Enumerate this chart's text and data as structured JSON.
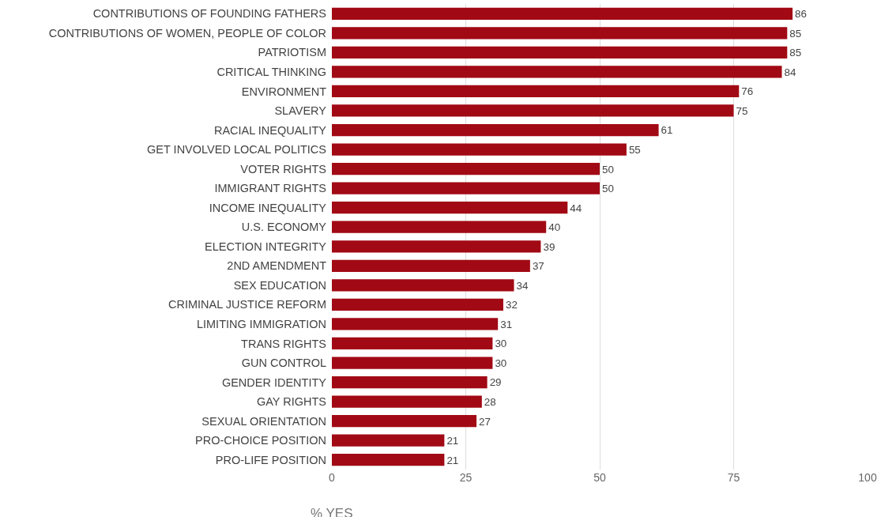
{
  "chart_data": {
    "type": "bar",
    "orientation": "horizontal",
    "xlabel": "% YES",
    "categories": [
      "CONTRIBUTIONS OF FOUNDING FATHERS",
      "CONTRIBUTIONS OF WOMEN, PEOPLE OF COLOR",
      "PATRIOTISM",
      "CRITICAL THINKING",
      "ENVIRONMENT",
      "SLAVERY",
      "RACIAL INEQUALITY",
      "GET INVOLVED LOCAL POLITICS",
      "VOTER RIGHTS",
      "IMMIGRANT RIGHTS",
      "INCOME INEQUALITY",
      "U.S. ECONOMY",
      "ELECTION INTEGRITY",
      "2ND AMENDMENT",
      "SEX EDUCATION",
      "CRIMINAL JUSTICE REFORM",
      "LIMITING IMMIGRATION",
      "TRANS RIGHTS",
      "GUN CONTROL",
      "GENDER IDENTITY",
      "GAY RIGHTS",
      "SEXUAL ORIENTATION",
      "PRO-CHOICE POSITION",
      "PRO-LIFE POSITION"
    ],
    "values": [
      86,
      85,
      85,
      84,
      76,
      75,
      61,
      55,
      50,
      50,
      44,
      40,
      39,
      37,
      34,
      32,
      31,
      30,
      30,
      29,
      28,
      27,
      21,
      21
    ],
    "color": "#a10a14",
    "xlim": [
      0,
      100
    ],
    "xticks": [
      0,
      25,
      50,
      75,
      100
    ],
    "grid": "x",
    "data_labels": true,
    "legend": false
  }
}
